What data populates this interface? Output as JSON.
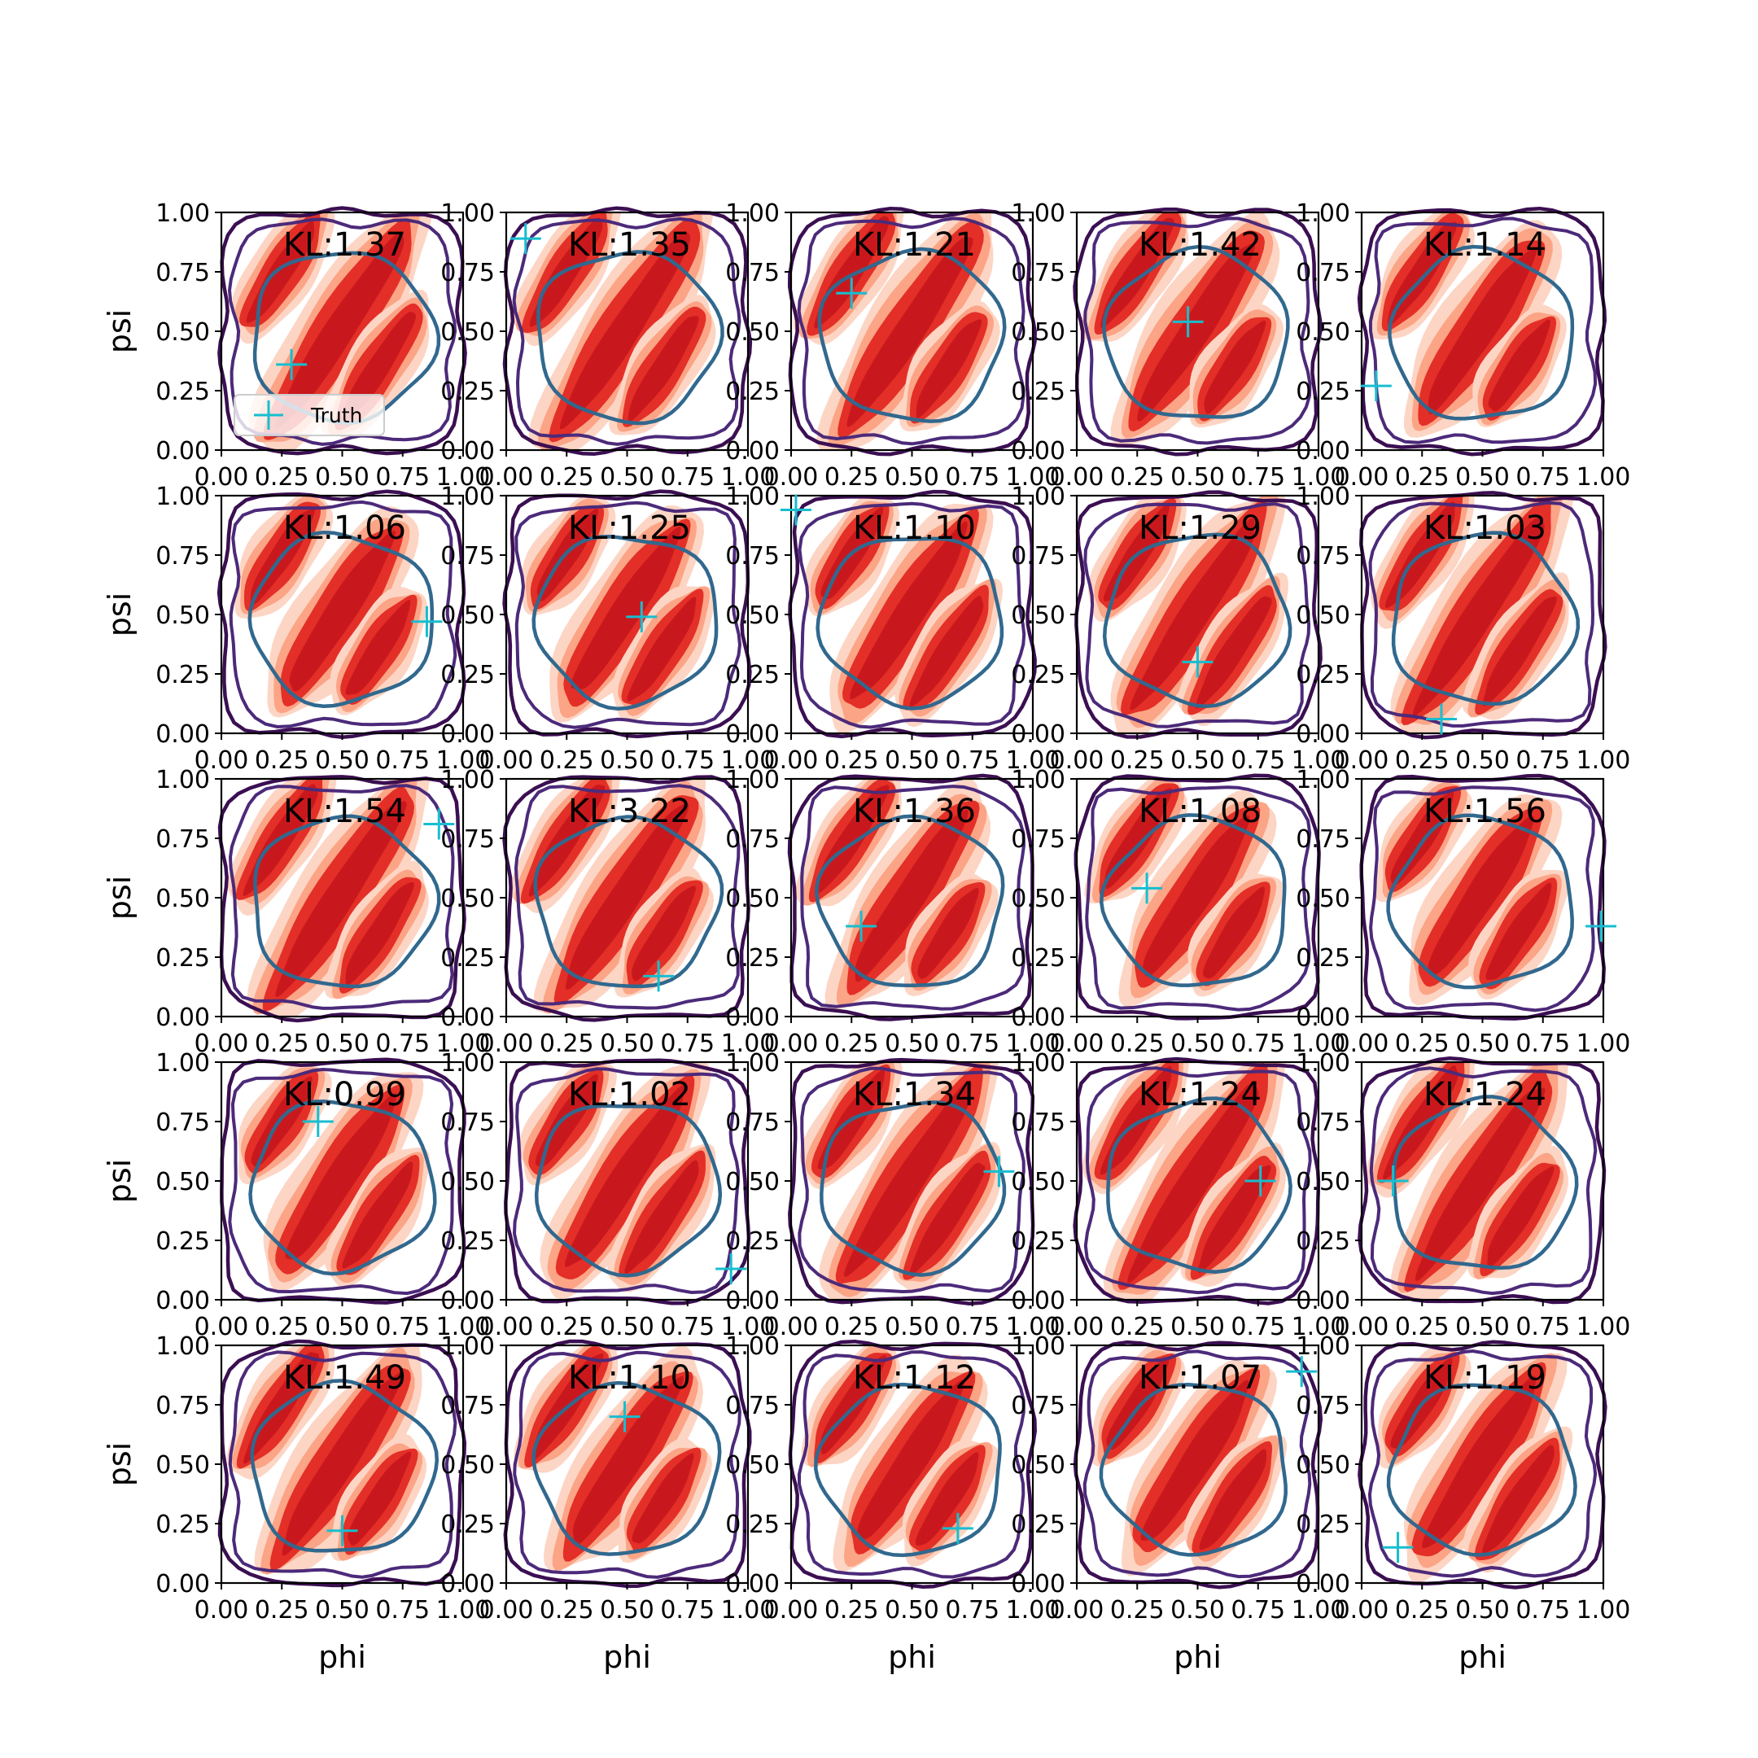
{
  "figure": {
    "legend_label": "Truth",
    "legend_placement": "lower-left of first panel"
  },
  "colors": {
    "posterior_fill": [
      "#fdd5c4",
      "#fca486",
      "#f26c4f",
      "#e32f27",
      "#c9181d"
    ],
    "contour_outer": "#3b0f52",
    "contour_mid": "#4c2a7a",
    "contour_inner": "#31688e",
    "truth_marker": "#17becf",
    "axes": "#000000"
  },
  "chart_data": [
    {
      "type": "heatmap",
      "title": "KL:1.37",
      "xlabel": "",
      "ylabel": "psi",
      "xlim": [
        0,
        1
      ],
      "ylim": [
        0,
        1
      ],
      "xticks": [
        "0.00",
        "0.25",
        "0.50",
        "0.75",
        "1.00"
      ],
      "yticks": [
        "0.00",
        "0.25",
        "0.50",
        "0.75",
        "1.00"
      ],
      "truth": {
        "x": 0.29,
        "y": 0.36
      }
    },
    {
      "type": "heatmap",
      "title": "KL:1.35",
      "xlabel": "",
      "ylabel": "",
      "xlim": [
        0,
        1
      ],
      "ylim": [
        0,
        1
      ],
      "xticks": [
        "0.00",
        "0.25",
        "0.50",
        "0.75",
        "1.00"
      ],
      "yticks": [
        "0.00",
        "0.25",
        "0.50",
        "0.75",
        "1.00"
      ],
      "truth": {
        "x": 0.08,
        "y": 0.89
      }
    },
    {
      "type": "heatmap",
      "title": "KL:1.21",
      "xlabel": "",
      "ylabel": "",
      "xlim": [
        0,
        1
      ],
      "ylim": [
        0,
        1
      ],
      "xticks": [
        "0.00",
        "0.25",
        "0.50",
        "0.75",
        "1.00"
      ],
      "yticks": [
        "0.00",
        "0.25",
        "0.50",
        "0.75",
        "1.00"
      ],
      "truth": {
        "x": 0.25,
        "y": 0.66
      }
    },
    {
      "type": "heatmap",
      "title": "KL:1.42",
      "xlabel": "",
      "ylabel": "",
      "xlim": [
        0,
        1
      ],
      "ylim": [
        0,
        1
      ],
      "xticks": [
        "0.00",
        "0.25",
        "0.50",
        "0.75",
        "1.00"
      ],
      "yticks": [
        "0.00",
        "0.25",
        "0.50",
        "0.75",
        "1.00"
      ],
      "truth": {
        "x": 0.46,
        "y": 0.54
      }
    },
    {
      "type": "heatmap",
      "title": "KL:1.14",
      "xlabel": "",
      "ylabel": "",
      "xlim": [
        0,
        1
      ],
      "ylim": [
        0,
        1
      ],
      "xticks": [
        "0.00",
        "0.25",
        "0.50",
        "0.75",
        "1.00"
      ],
      "yticks": [
        "0.00",
        "0.25",
        "0.50",
        "0.75",
        "1.00"
      ],
      "truth": {
        "x": 0.06,
        "y": 0.27
      }
    },
    {
      "type": "heatmap",
      "title": "KL:1.06",
      "xlabel": "",
      "ylabel": "psi",
      "xlim": [
        0,
        1
      ],
      "ylim": [
        0,
        1
      ],
      "xticks": [
        "0.00",
        "0.25",
        "0.50",
        "0.75",
        "1.00"
      ],
      "yticks": [
        "0.00",
        "0.25",
        "0.50",
        "0.75",
        "1.00"
      ],
      "truth": {
        "x": 0.85,
        "y": 0.47
      }
    },
    {
      "type": "heatmap",
      "title": "KL:1.25",
      "xlabel": "",
      "ylabel": "",
      "xlim": [
        0,
        1
      ],
      "ylim": [
        0,
        1
      ],
      "xticks": [
        "0.00",
        "0.25",
        "0.50",
        "0.75",
        "1.00"
      ],
      "yticks": [
        "0.00",
        "0.25",
        "0.50",
        "0.75",
        "1.00"
      ],
      "truth": {
        "x": 0.56,
        "y": 0.49
      }
    },
    {
      "type": "heatmap",
      "title": "KL:1.10",
      "xlabel": "",
      "ylabel": "",
      "xlim": [
        0,
        1
      ],
      "ylim": [
        0,
        1
      ],
      "xticks": [
        "0.00",
        "0.25",
        "0.50",
        "0.75",
        "1.00"
      ],
      "yticks": [
        "0.00",
        "0.25",
        "0.50",
        "0.75",
        "1.00"
      ],
      "truth": {
        "x": 0.02,
        "y": 0.94
      }
    },
    {
      "type": "heatmap",
      "title": "KL:1.29",
      "xlabel": "",
      "ylabel": "",
      "xlim": [
        0,
        1
      ],
      "ylim": [
        0,
        1
      ],
      "xticks": [
        "0.00",
        "0.25",
        "0.50",
        "0.75",
        "1.00"
      ],
      "yticks": [
        "0.00",
        "0.25",
        "0.50",
        "0.75",
        "1.00"
      ],
      "truth": {
        "x": 0.5,
        "y": 0.3
      }
    },
    {
      "type": "heatmap",
      "title": "KL:1.03",
      "xlabel": "",
      "ylabel": "",
      "xlim": [
        0,
        1
      ],
      "ylim": [
        0,
        1
      ],
      "xticks": [
        "0.00",
        "0.25",
        "0.50",
        "0.75",
        "1.00"
      ],
      "yticks": [
        "0.00",
        "0.25",
        "0.50",
        "0.75",
        "1.00"
      ],
      "truth": {
        "x": 0.33,
        "y": 0.06
      }
    },
    {
      "type": "heatmap",
      "title": "KL:1.54",
      "xlabel": "",
      "ylabel": "psi",
      "xlim": [
        0,
        1
      ],
      "ylim": [
        0,
        1
      ],
      "xticks": [
        "0.00",
        "0.25",
        "0.50",
        "0.75",
        "1.00"
      ],
      "yticks": [
        "0.00",
        "0.25",
        "0.50",
        "0.75",
        "1.00"
      ],
      "truth": {
        "x": 0.9,
        "y": 0.81
      }
    },
    {
      "type": "heatmap",
      "title": "KL:3.22",
      "xlabel": "",
      "ylabel": "",
      "xlim": [
        0,
        1
      ],
      "ylim": [
        0,
        1
      ],
      "xticks": [
        "0.00",
        "0.25",
        "0.50",
        "0.75",
        "1.00"
      ],
      "yticks": [
        "0.00",
        "0.25",
        "0.50",
        "0.75",
        "1.00"
      ],
      "truth": {
        "x": 0.63,
        "y": 0.17
      }
    },
    {
      "type": "heatmap",
      "title": "KL:1.36",
      "xlabel": "",
      "ylabel": "",
      "xlim": [
        0,
        1
      ],
      "ylim": [
        0,
        1
      ],
      "xticks": [
        "0.00",
        "0.25",
        "0.50",
        "0.75",
        "1.00"
      ],
      "yticks": [
        "0.00",
        "0.25",
        "0.50",
        "0.75",
        "1.00"
      ],
      "truth": {
        "x": 0.29,
        "y": 0.38
      }
    },
    {
      "type": "heatmap",
      "title": "KL:1.08",
      "xlabel": "",
      "ylabel": "",
      "xlim": [
        0,
        1
      ],
      "ylim": [
        0,
        1
      ],
      "xticks": [
        "0.00",
        "0.25",
        "0.50",
        "0.75",
        "1.00"
      ],
      "yticks": [
        "0.00",
        "0.25",
        "0.50",
        "0.75",
        "1.00"
      ],
      "truth": {
        "x": 0.29,
        "y": 0.54
      }
    },
    {
      "type": "heatmap",
      "title": "KL:1.56",
      "xlabel": "",
      "ylabel": "",
      "xlim": [
        0,
        1
      ],
      "ylim": [
        0,
        1
      ],
      "xticks": [
        "0.00",
        "0.25",
        "0.50",
        "0.75",
        "1.00"
      ],
      "yticks": [
        "0.00",
        "0.25",
        "0.50",
        "0.75",
        "1.00"
      ],
      "truth": {
        "x": 0.99,
        "y": 0.38
      }
    },
    {
      "type": "heatmap",
      "title": "KL:0.99",
      "xlabel": "",
      "ylabel": "psi",
      "xlim": [
        0,
        1
      ],
      "ylim": [
        0,
        1
      ],
      "xticks": [
        "0.00",
        "0.25",
        "0.50",
        "0.75",
        "1.00"
      ],
      "yticks": [
        "0.00",
        "0.25",
        "0.50",
        "0.75",
        "1.00"
      ],
      "truth": {
        "x": 0.4,
        "y": 0.75
      }
    },
    {
      "type": "heatmap",
      "title": "KL:1.02",
      "xlabel": "",
      "ylabel": "",
      "xlim": [
        0,
        1
      ],
      "ylim": [
        0,
        1
      ],
      "xticks": [
        "0.00",
        "0.25",
        "0.50",
        "0.75",
        "1.00"
      ],
      "yticks": [
        "0.00",
        "0.25",
        "0.50",
        "0.75",
        "1.00"
      ],
      "truth": {
        "x": 0.93,
        "y": 0.13
      }
    },
    {
      "type": "heatmap",
      "title": "KL:1.34",
      "xlabel": "",
      "ylabel": "",
      "xlim": [
        0,
        1
      ],
      "ylim": [
        0,
        1
      ],
      "xticks": [
        "0.00",
        "0.25",
        "0.50",
        "0.75",
        "1.00"
      ],
      "yticks": [
        "0.00",
        "0.25",
        "0.50",
        "0.75",
        "1.00"
      ],
      "truth": {
        "x": 0.86,
        "y": 0.54
      }
    },
    {
      "type": "heatmap",
      "title": "KL:1.24",
      "xlabel": "",
      "ylabel": "",
      "xlim": [
        0,
        1
      ],
      "ylim": [
        0,
        1
      ],
      "xticks": [
        "0.00",
        "0.25",
        "0.50",
        "0.75",
        "1.00"
      ],
      "yticks": [
        "0.00",
        "0.25",
        "0.50",
        "0.75",
        "1.00"
      ],
      "truth": {
        "x": 0.76,
        "y": 0.5
      }
    },
    {
      "type": "heatmap",
      "title": "KL:1.24",
      "xlabel": "",
      "ylabel": "",
      "xlim": [
        0,
        1
      ],
      "ylim": [
        0,
        1
      ],
      "xticks": [
        "0.00",
        "0.25",
        "0.50",
        "0.75",
        "1.00"
      ],
      "yticks": [
        "0.00",
        "0.25",
        "0.50",
        "0.75",
        "1.00"
      ],
      "truth": {
        "x": 0.13,
        "y": 0.5
      }
    },
    {
      "type": "heatmap",
      "title": "KL:1.49",
      "xlabel": "phi",
      "ylabel": "psi",
      "xlim": [
        0,
        1
      ],
      "ylim": [
        0,
        1
      ],
      "xticks": [
        "0.00",
        "0.25",
        "0.50",
        "0.75",
        "1.00"
      ],
      "yticks": [
        "0.00",
        "0.25",
        "0.50",
        "0.75",
        "1.00"
      ],
      "truth": {
        "x": 0.5,
        "y": 0.22
      }
    },
    {
      "type": "heatmap",
      "title": "KL:1.10",
      "xlabel": "phi",
      "ylabel": "",
      "xlim": [
        0,
        1
      ],
      "ylim": [
        0,
        1
      ],
      "xticks": [
        "0.00",
        "0.25",
        "0.50",
        "0.75",
        "1.00"
      ],
      "yticks": [
        "0.00",
        "0.25",
        "0.50",
        "0.75",
        "1.00"
      ],
      "truth": {
        "x": 0.49,
        "y": 0.7
      }
    },
    {
      "type": "heatmap",
      "title": "KL:1.12",
      "xlabel": "phi",
      "ylabel": "",
      "xlim": [
        0,
        1
      ],
      "ylim": [
        0,
        1
      ],
      "xticks": [
        "0.00",
        "0.25",
        "0.50",
        "0.75",
        "1.00"
      ],
      "yticks": [
        "0.00",
        "0.25",
        "0.50",
        "0.75",
        "1.00"
      ],
      "truth": {
        "x": 0.69,
        "y": 0.23
      }
    },
    {
      "type": "heatmap",
      "title": "KL:1.07",
      "xlabel": "phi",
      "ylabel": "",
      "xlim": [
        0,
        1
      ],
      "ylim": [
        0,
        1
      ],
      "xticks": [
        "0.00",
        "0.25",
        "0.50",
        "0.75",
        "1.00"
      ],
      "yticks": [
        "0.00",
        "0.25",
        "0.50",
        "0.75",
        "1.00"
      ],
      "truth": {
        "x": 0.93,
        "y": 0.89
      }
    },
    {
      "type": "heatmap",
      "title": "KL:1.19",
      "xlabel": "phi",
      "ylabel": "",
      "xlim": [
        0,
        1
      ],
      "ylim": [
        0,
        1
      ],
      "xticks": [
        "0.00",
        "0.25",
        "0.50",
        "0.75",
        "1.00"
      ],
      "yticks": [
        "0.00",
        "0.25",
        "0.50",
        "0.75",
        "1.00"
      ],
      "truth": {
        "x": 0.15,
        "y": 0.15
      }
    }
  ]
}
